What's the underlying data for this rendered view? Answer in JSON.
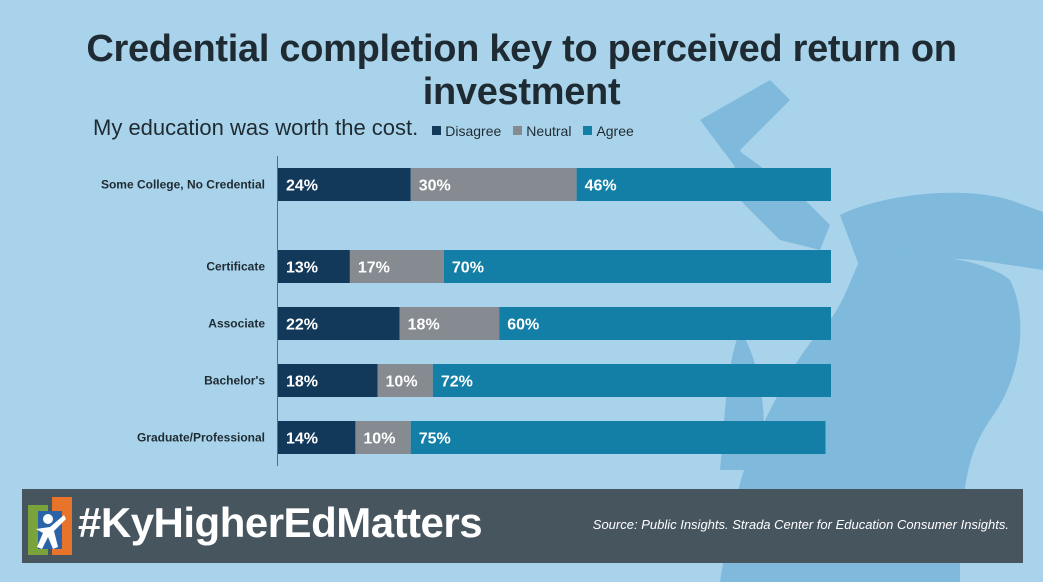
{
  "header": {
    "title": "Credential completion key to perceived return on investment"
  },
  "colors": {
    "background": "#a9d3ea",
    "silhouette": "#7fbadd",
    "disagree": "#12385a",
    "neutral": "#858b90",
    "agree": "#137fa6",
    "footer": "#47555f"
  },
  "chart_data": {
    "type": "bar",
    "orientation": "horizontal",
    "stacked": true,
    "title": "My education was worth the cost.",
    "categories": [
      "Some College, No Credential",
      "Certificate",
      "Associate",
      "Bachelor's",
      "Graduate/Professional"
    ],
    "series": [
      {
        "name": "Disagree",
        "values": [
          24,
          13,
          22,
          18,
          14
        ],
        "labels": [
          "24%",
          "13%",
          "22%",
          "18%",
          "14%"
        ]
      },
      {
        "name": "Neutral",
        "values": [
          30,
          17,
          18,
          10,
          10
        ],
        "labels": [
          "30%",
          "17%",
          "18%",
          "10%",
          "10%"
        ]
      },
      {
        "name": "Agree",
        "values": [
          46,
          70,
          60,
          72,
          75
        ],
        "labels": [
          "46%",
          "70%",
          "60%",
          "72%",
          "75%"
        ]
      }
    ],
    "xlim": [
      0,
      100
    ],
    "grid": false,
    "legend": "top"
  },
  "footer": {
    "hashtag": "#KyHigherEdMatters",
    "source": "Source: Public Insights. Strada Center for Education Consumer Insights."
  },
  "icons": {
    "logo": "kentucky-higher-ed-logo-icon",
    "background": "graduate-silhouette"
  }
}
